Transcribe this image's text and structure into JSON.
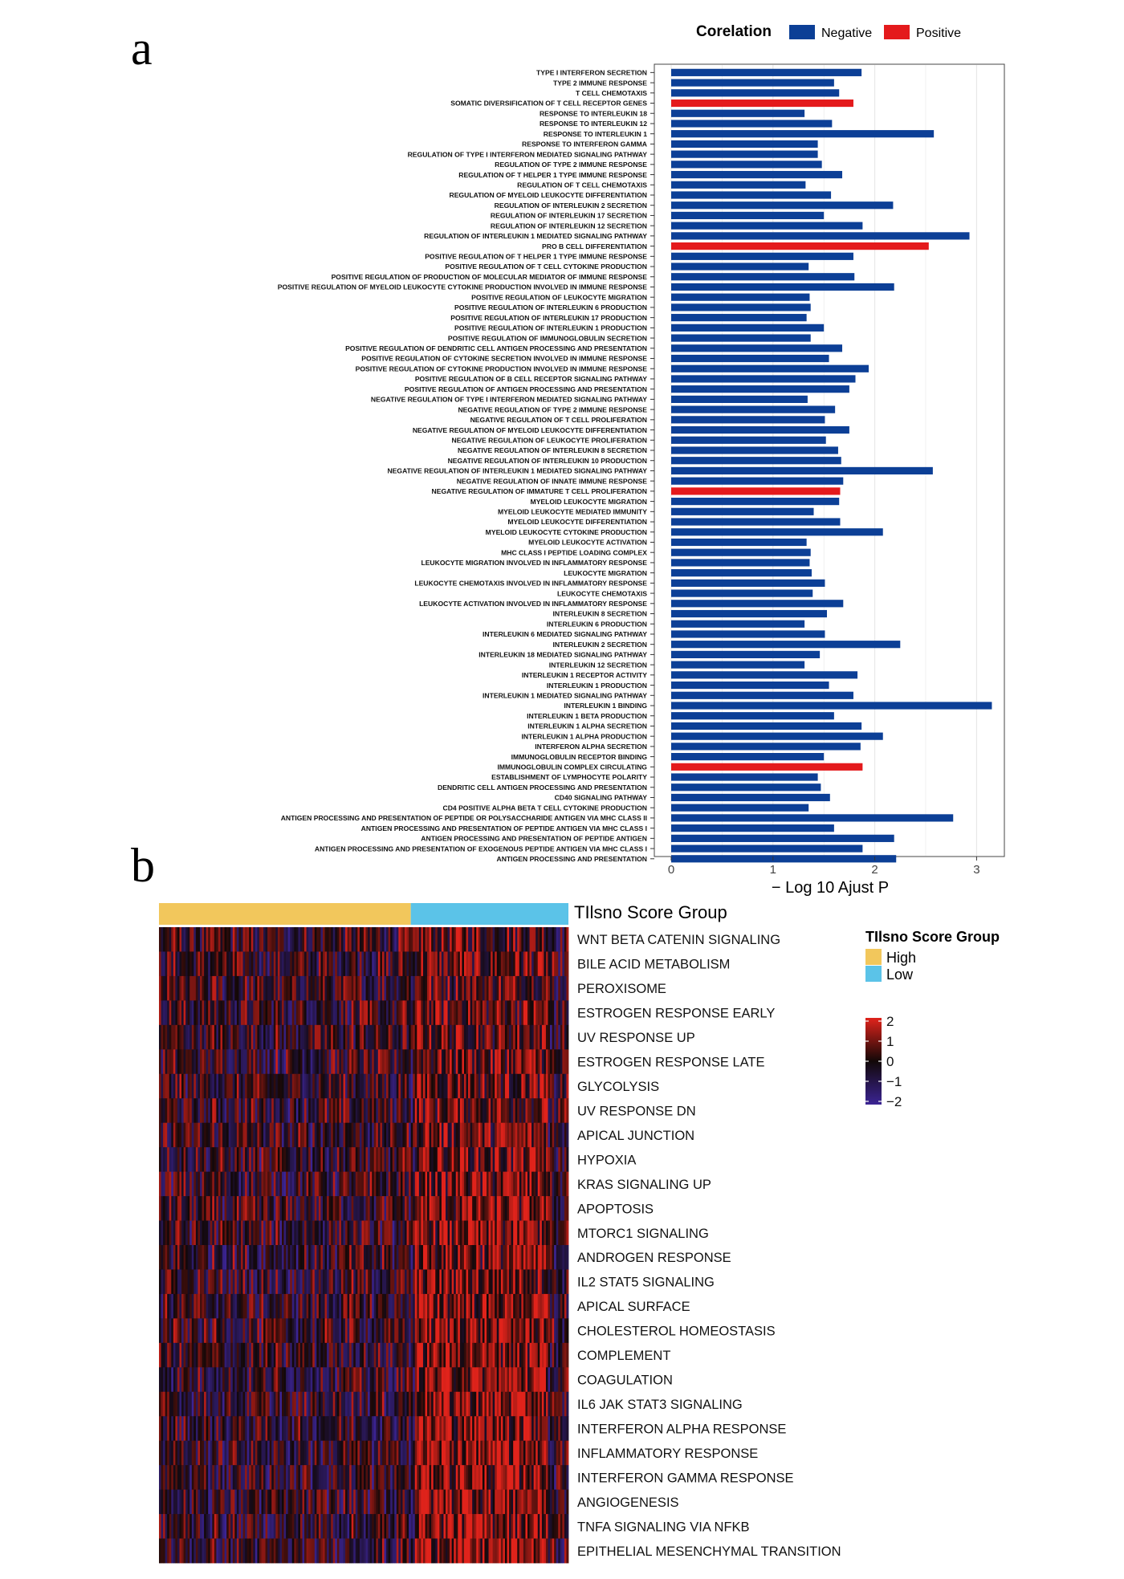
{
  "panel_labels": {
    "a": "a",
    "b": "b"
  },
  "colors": {
    "negative": "#0c3f96",
    "positive": "#e41a1c",
    "high": "#f2c75c",
    "low": "#5bc3e8",
    "heat_high": "#e0231b",
    "heat_mid": "#120808",
    "heat_low": "#3b2494"
  },
  "chart_data": [
    {
      "type": "bar",
      "orientation": "horizontal",
      "xlabel": "− Log 10 Ajust P",
      "xlim": [
        0,
        3.3
      ],
      "xticks": [
        0,
        1,
        2,
        3
      ],
      "legend": {
        "title": "Corelation",
        "placement": "top-right",
        "entries": [
          "Negative",
          "Positive"
        ]
      },
      "grid": true,
      "categories": [
        "TYPE I INTERFERON SECRETION",
        "TYPE 2 IMMUNE RESPONSE",
        "T CELL CHEMOTAXIS",
        "SOMATIC DIVERSIFICATION OF T CELL RECEPTOR GENES",
        "RESPONSE TO INTERLEUKIN 18",
        "RESPONSE TO INTERLEUKIN 12",
        "RESPONSE TO INTERLEUKIN 1",
        "RESPONSE TO INTERFERON GAMMA",
        "REGULATION OF TYPE I INTERFERON MEDIATED SIGNALING PATHWAY",
        "REGULATION OF TYPE 2 IMMUNE RESPONSE",
        "REGULATION OF T HELPER 1 TYPE IMMUNE RESPONSE",
        "REGULATION OF T CELL CHEMOTAXIS",
        "REGULATION OF MYELOID LEUKOCYTE DIFFERENTIATION",
        "REGULATION OF INTERLEUKIN 2 SECRETION",
        "REGULATION OF INTERLEUKIN 17 SECRETION",
        "REGULATION OF INTERLEUKIN 12 SECRETION",
        "REGULATION OF INTERLEUKIN 1 MEDIATED SIGNALING PATHWAY",
        "PRO B CELL DIFFERENTIATION",
        "POSITIVE REGULATION OF T HELPER 1 TYPE IMMUNE RESPONSE",
        "POSITIVE REGULATION OF T CELL CYTOKINE PRODUCTION",
        "POSITIVE REGULATION OF PRODUCTION OF MOLECULAR MEDIATOR OF IMMUNE RESPONSE",
        "POSITIVE REGULATION OF MYELOID LEUKOCYTE CYTOKINE PRODUCTION INVOLVED IN IMMUNE RESPONSE",
        "POSITIVE REGULATION OF LEUKOCYTE MIGRATION",
        "POSITIVE REGULATION OF INTERLEUKIN 6 PRODUCTION",
        "POSITIVE REGULATION OF INTERLEUKIN 17 PRODUCTION",
        "POSITIVE REGULATION OF INTERLEUKIN 1 PRODUCTION",
        "POSITIVE REGULATION OF IMMUNOGLOBULIN SECRETION",
        "POSITIVE REGULATION OF DENDRITIC CELL ANTIGEN PROCESSING AND PRESENTATION",
        "POSITIVE REGULATION OF CYTOKINE SECRETION INVOLVED IN IMMUNE RESPONSE",
        "POSITIVE REGULATION OF CYTOKINE PRODUCTION INVOLVED IN IMMUNE RESPONSE",
        "POSITIVE REGULATION OF B CELL RECEPTOR SIGNALING PATHWAY",
        "POSITIVE REGULATION OF ANTIGEN PROCESSING AND PRESENTATION",
        "NEGATIVE REGULATION OF TYPE I INTERFERON MEDIATED SIGNALING PATHWAY",
        "NEGATIVE REGULATION OF TYPE 2 IMMUNE RESPONSE",
        "NEGATIVE REGULATION OF T CELL PROLIFERATION",
        "NEGATIVE REGULATION OF MYELOID LEUKOCYTE DIFFERENTIATION",
        "NEGATIVE REGULATION OF LEUKOCYTE PROLIFERATION",
        "NEGATIVE REGULATION OF INTERLEUKIN 8 SECRETION",
        "NEGATIVE REGULATION OF INTERLEUKIN 10 PRODUCTION",
        "NEGATIVE REGULATION OF INTERLEUKIN 1 MEDIATED SIGNALING PATHWAY",
        "NEGATIVE REGULATION OF INNATE IMMUNE RESPONSE",
        "NEGATIVE REGULATION OF IMMATURE T CELL PROLIFERATION",
        "MYELOID LEUKOCYTE MIGRATION",
        "MYELOID LEUKOCYTE MEDIATED IMMUNITY",
        "MYELOID LEUKOCYTE DIFFERENTIATION",
        "MYELOID LEUKOCYTE CYTOKINE PRODUCTION",
        "MYELOID LEUKOCYTE ACTIVATION",
        "MHC CLASS I PEPTIDE LOADING COMPLEX",
        "LEUKOCYTE MIGRATION INVOLVED IN INFLAMMATORY RESPONSE",
        "LEUKOCYTE MIGRATION",
        "LEUKOCYTE CHEMOTAXIS INVOLVED IN INFLAMMATORY RESPONSE",
        "LEUKOCYTE CHEMOTAXIS",
        "LEUKOCYTE ACTIVATION INVOLVED IN INFLAMMATORY RESPONSE",
        "INTERLEUKIN 8 SECRETION",
        "INTERLEUKIN 6 PRODUCTION",
        "INTERLEUKIN 6 MEDIATED SIGNALING PATHWAY",
        "INTERLEUKIN 2 SECRETION",
        "INTERLEUKIN 18 MEDIATED SIGNALING PATHWAY",
        "INTERLEUKIN 12 SECRETION",
        "INTERLEUKIN 1 RECEPTOR ACTIVITY",
        "INTERLEUKIN 1 PRODUCTION",
        "INTERLEUKIN 1 MEDIATED SIGNALING PATHWAY",
        "INTERLEUKIN 1 BINDING",
        "INTERLEUKIN 1 BETA PRODUCTION",
        "INTERLEUKIN 1 ALPHA SECRETION",
        "INTERLEUKIN 1 ALPHA PRODUCTION",
        "INTERFERON ALPHA SECRETION",
        "IMMUNOGLOBULIN RECEPTOR BINDING",
        "IMMUNOGLOBULIN COMPLEX CIRCULATING",
        "ESTABLISHMENT OF LYMPHOCYTE POLARITY",
        "DENDRITIC CELL ANTIGEN PROCESSING AND PRESENTATION",
        "CD40 SIGNALING PATHWAY",
        "CD4 POSITIVE ALPHA BETA T CELL CYTOKINE PRODUCTION",
        "ANTIGEN PROCESSING AND PRESENTATION OF PEPTIDE OR POLYSACCHARIDE ANTIGEN VIA MHC CLASS II",
        "ANTIGEN PROCESSING AND PRESENTATION OF PEPTIDE ANTIGEN VIA MHC CLASS I",
        "ANTIGEN PROCESSING AND PRESENTATION OF PEPTIDE ANTIGEN",
        "ANTIGEN PROCESSING AND PRESENTATION OF EXOGENOUS PEPTIDE ANTIGEN VIA MHC CLASS I",
        "ANTIGEN PROCESSING AND PRESENTATION"
      ],
      "values": [
        1.87,
        1.6,
        1.65,
        1.79,
        1.31,
        1.58,
        2.58,
        1.44,
        1.44,
        1.48,
        1.68,
        1.32,
        1.57,
        2.18,
        1.5,
        1.88,
        2.93,
        2.53,
        1.79,
        1.35,
        1.8,
        2.19,
        1.36,
        1.37,
        1.33,
        1.5,
        1.37,
        1.68,
        1.55,
        1.94,
        1.81,
        1.75,
        1.34,
        1.61,
        1.51,
        1.75,
        1.52,
        1.64,
        1.67,
        2.57,
        1.69,
        1.66,
        1.65,
        1.4,
        1.66,
        2.08,
        1.33,
        1.37,
        1.36,
        1.38,
        1.51,
        1.39,
        1.69,
        1.53,
        1.31,
        1.51,
        2.25,
        1.46,
        1.31,
        1.83,
        1.55,
        1.79,
        3.15,
        1.6,
        1.87,
        2.08,
        1.86,
        1.5,
        1.88,
        1.44,
        1.47,
        1.56,
        1.35,
        2.77,
        1.6,
        2.19,
        1.88,
        2.21
      ],
      "correlation": [
        "Negative",
        "Negative",
        "Negative",
        "Positive",
        "Negative",
        "Negative",
        "Negative",
        "Negative",
        "Negative",
        "Negative",
        "Negative",
        "Negative",
        "Negative",
        "Negative",
        "Negative",
        "Negative",
        "Negative",
        "Positive",
        "Negative",
        "Negative",
        "Negative",
        "Negative",
        "Negative",
        "Negative",
        "Negative",
        "Negative",
        "Negative",
        "Negative",
        "Negative",
        "Negative",
        "Negative",
        "Negative",
        "Negative",
        "Negative",
        "Negative",
        "Negative",
        "Negative",
        "Negative",
        "Negative",
        "Negative",
        "Negative",
        "Positive",
        "Negative",
        "Negative",
        "Negative",
        "Negative",
        "Negative",
        "Negative",
        "Negative",
        "Negative",
        "Negative",
        "Negative",
        "Negative",
        "Negative",
        "Negative",
        "Negative",
        "Negative",
        "Negative",
        "Negative",
        "Negative",
        "Negative",
        "Negative",
        "Negative",
        "Negative",
        "Negative",
        "Negative",
        "Negative",
        "Negative",
        "Positive",
        "Negative",
        "Negative",
        "Negative",
        "Negative",
        "Negative",
        "Negative",
        "Negative",
        "Negative",
        "Negative"
      ]
    },
    {
      "type": "heatmap",
      "annotation": {
        "title": "TIlsno Score Group",
        "groups": [
          "High",
          "Low"
        ],
        "group_fraction": [
          0.615,
          0.385
        ]
      },
      "rows": [
        "WNT BETA CATENIN SIGNALING",
        "BILE ACID METABOLISM",
        "PEROXISOME",
        "ESTROGEN RESPONSE EARLY",
        "UV RESPONSE UP",
        "ESTROGEN RESPONSE LATE",
        "GLYCOLYSIS",
        "UV RESPONSE DN",
        "APICAL JUNCTION",
        "HYPOXIA",
        "KRAS SIGNALING UP",
        "APOPTOSIS",
        "MTORC1 SIGNALING",
        "ANDROGEN RESPONSE",
        "IL2 STAT5 SIGNALING",
        "APICAL SURFACE",
        "CHOLESTEROL HOMEOSTASIS",
        "COMPLEMENT",
        "COAGULATION",
        "IL6 JAK STAT3 SIGNALING",
        "INTERFERON ALPHA RESPONSE",
        "INFLAMMATORY RESPONSE",
        "INTERFERON GAMMA RESPONSE",
        "ANGIOGENESIS",
        "TNFA SIGNALING VIA NFKB",
        "EPITHELIAL MESENCHYMAL TRANSITION"
      ],
      "legend_title": "TIlsno Score Group",
      "color_scale": {
        "min": -2,
        "max": 2,
        "ticks": [
          "2",
          "1",
          "0",
          "−1",
          "−2"
        ]
      },
      "columns": 200
    }
  ]
}
